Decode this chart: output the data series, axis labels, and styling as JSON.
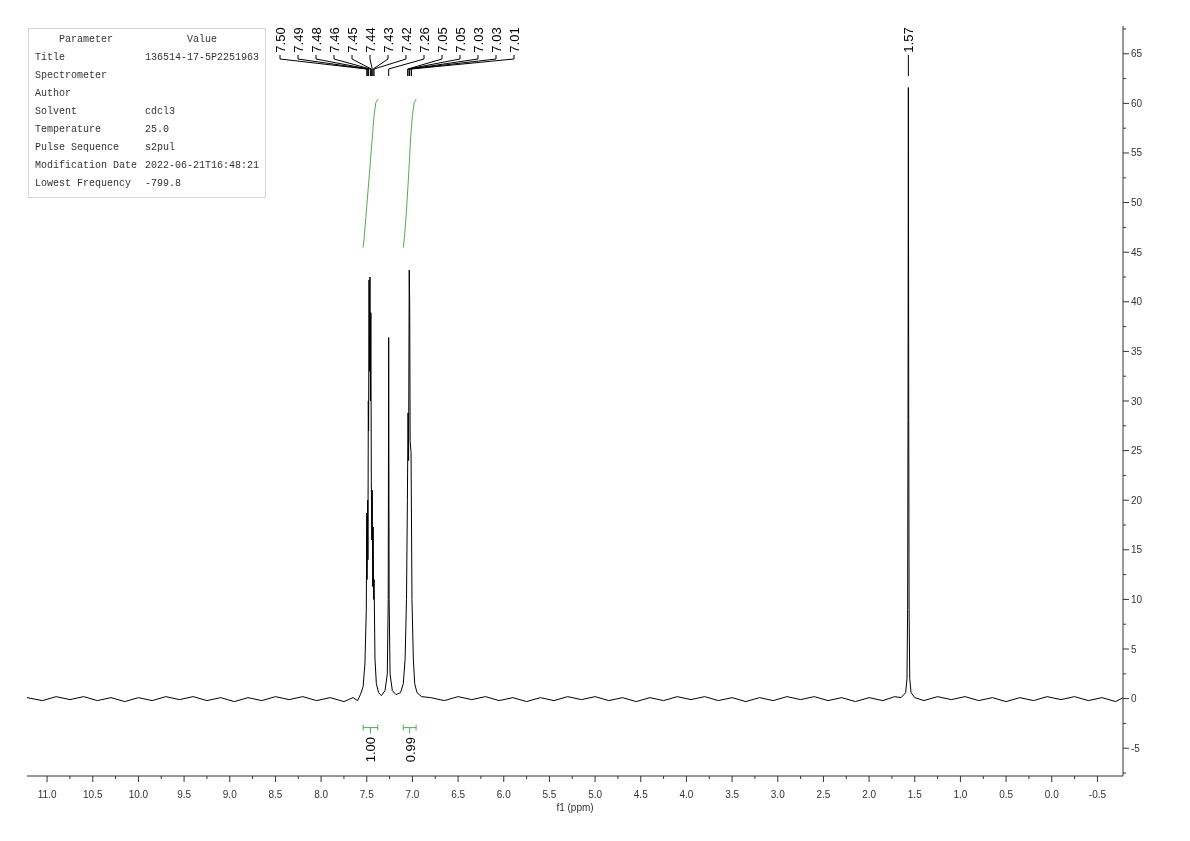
{
  "chart_data": [
    {
      "type": "line",
      "xlabel": "f1 (ppm)",
      "xlim": [
        11.22,
        -0.78
      ],
      "xticks": [
        {
          "value": 11,
          "label": "11.0"
        },
        {
          "value": 10.75,
          "label": null
        },
        10.5,
        {
          "value": 10.25,
          "label": null
        },
        {
          "value": 10,
          "label": "10.0"
        },
        {
          "value": 9.75,
          "label": null
        },
        9.5,
        {
          "value": 9.25,
          "label": null
        },
        {
          "value": 9,
          "label": "9.0"
        },
        {
          "value": 8.75,
          "label": null
        },
        8.5,
        {
          "value": 8.25,
          "label": null
        },
        {
          "value": 8,
          "label": "8.0"
        },
        {
          "value": 7.75,
          "label": null
        },
        7.5,
        {
          "value": 7.25,
          "label": null
        },
        {
          "value": 7,
          "label": "7.0"
        },
        {
          "value": 6.75,
          "label": null
        },
        6.5,
        {
          "value": 6.25,
          "label": null
        },
        {
          "value": 6,
          "label": "6.0"
        },
        {
          "value": 5.75,
          "label": null
        },
        5.5,
        {
          "value": 5.25,
          "label": null
        },
        {
          "value": 5,
          "label": "5.0"
        },
        {
          "value": 4.75,
          "label": null
        },
        4.5,
        {
          "value": 4.25,
          "label": null
        },
        {
          "value": 4,
          "label": "4.0"
        },
        {
          "value": 3.75,
          "label": null
        },
        3.5,
        {
          "value": 3.25,
          "label": null
        },
        {
          "value": 3,
          "label": "3.0"
        },
        {
          "value": 2.75,
          "label": null
        },
        2.5,
        {
          "value": 2.25,
          "label": null
        },
        {
          "value": 2,
          "label": "2.0"
        },
        {
          "value": 1.75,
          "label": null
        },
        1.5,
        {
          "value": 1.25,
          "label": null
        },
        {
          "value": 1,
          "label": "1.0"
        },
        {
          "value": 0.75,
          "label": null
        },
        0.5,
        {
          "value": 0.25,
          "label": null
        },
        {
          "value": 0,
          "label": "0.0"
        },
        {
          "value": -0.25,
          "label": null
        },
        -0.5
      ],
      "ylim": [
        -7.8,
        67.8
      ],
      "yticks": [
        {
          "value": -7.5,
          "label": null
        },
        -5,
        {
          "value": -2.5,
          "label": null
        },
        0,
        {
          "value": 2.5,
          "label": null
        },
        5,
        {
          "value": 7.5,
          "label": null
        },
        10,
        {
          "value": 12.5,
          "label": null
        },
        15,
        {
          "value": 17.5,
          "label": null
        },
        20,
        {
          "value": 22.5,
          "label": null
        },
        25,
        {
          "value": 27.5,
          "label": null
        },
        30,
        {
          "value": 32.5,
          "label": null
        },
        35,
        {
          "value": 37.5,
          "label": null
        },
        40,
        {
          "value": 42.5,
          "label": null
        },
        45,
        {
          "value": 47.5,
          "label": null
        },
        50,
        {
          "value": 52.5,
          "label": null
        },
        55,
        {
          "value": 57.5,
          "label": null
        },
        60,
        {
          "value": 62.5,
          "label": null
        },
        65,
        {
          "value": 67.5,
          "label": null
        }
      ],
      "marker": "none",
      "series": [
        {
          "type": "line",
          "color": "#000000",
          "x": [
            11.22,
            11.05,
            10.9,
            10.75,
            10.6,
            10.45,
            10.3,
            10.15,
            10.0,
            9.85,
            9.7,
            9.55,
            9.4,
            9.25,
            9.1,
            8.95,
            8.8,
            8.65,
            8.5,
            8.35,
            8.2,
            8.05,
            7.9,
            7.75,
            7.65,
            7.6,
            7.57,
            7.54,
            7.52,
            7.505,
            7.5,
            7.497,
            7.493,
            7.49,
            7.487,
            7.483,
            7.48,
            7.475,
            7.47,
            7.465,
            7.46,
            7.455,
            7.45,
            7.445,
            7.44,
            7.435,
            7.43,
            7.425,
            7.42,
            7.41,
            7.395,
            7.37,
            7.34,
            7.3,
            7.275,
            7.265,
            7.26,
            7.255,
            7.245,
            7.22,
            7.18,
            7.13,
            7.1,
            7.08,
            7.065,
            7.055,
            7.048,
            7.042,
            7.035,
            7.03,
            7.025,
            7.015,
            7.005,
            6.99,
            6.975,
            6.95,
            6.9,
            6.8,
            6.65,
            6.5,
            6.35,
            6.2,
            6.05,
            5.9,
            5.75,
            5.6,
            5.45,
            5.3,
            5.15,
            5.0,
            4.85,
            4.7,
            4.55,
            4.4,
            4.25,
            4.1,
            3.95,
            3.8,
            3.65,
            3.5,
            3.35,
            3.2,
            3.05,
            2.9,
            2.75,
            2.6,
            2.45,
            2.3,
            2.15,
            2.0,
            1.85,
            1.72,
            1.65,
            1.6,
            1.585,
            1.578,
            1.574,
            1.57,
            1.566,
            1.562,
            1.555,
            1.54,
            1.5,
            1.4,
            1.25,
            1.1,
            0.95,
            0.8,
            0.65,
            0.5,
            0.35,
            0.2,
            0.05,
            -0.1,
            -0.25,
            -0.4,
            -0.55,
            -0.7,
            -0.78
          ],
          "values": [
            0.1,
            -0.2,
            0.2,
            -0.1,
            0.2,
            -0.2,
            0.1,
            -0.3,
            0.1,
            -0.2,
            0.2,
            -0.1,
            0.2,
            -0.2,
            0.1,
            -0.3,
            0.1,
            -0.2,
            0.2,
            -0.1,
            0.2,
            -0.2,
            0.1,
            -0.3,
            0.1,
            -0.2,
            0.4,
            1.2,
            3.5,
            9,
            18.7,
            12,
            16,
            20,
            14,
            30,
            27,
            42.2,
            33,
            42.5,
            30,
            38.9,
            22,
            16,
            21,
            11.3,
            17.3,
            10,
            12,
            4,
            1.5,
            0.6,
            0.3,
            0.8,
            2.5,
            10,
            36.4,
            10,
            2.5,
            0.8,
            0.4,
            0.6,
            1.5,
            4,
            10,
            20,
            28.8,
            24,
            43.2,
            40,
            26,
            24.8,
            10,
            4,
            1.5,
            0.6,
            0.2,
            0.1,
            -0.2,
            0.2,
            -0.1,
            0.2,
            -0.2,
            0.1,
            -0.3,
            0.1,
            -0.2,
            0.2,
            -0.1,
            0.2,
            -0.2,
            0.1,
            -0.3,
            0.1,
            -0.2,
            0.2,
            -0.1,
            0.2,
            -0.2,
            0.1,
            -0.3,
            0.1,
            -0.2,
            0.2,
            -0.1,
            0.2,
            -0.2,
            0.1,
            -0.3,
            0.1,
            -0.2,
            0.2,
            0.1,
            0.6,
            2,
            9,
            28,
            61.6,
            28,
            9,
            2,
            0.6,
            0.1,
            -0.2,
            0.2,
            -0.1,
            0.2,
            -0.2,
            0.1,
            -0.3,
            0.1,
            -0.2,
            0.2,
            -0.1,
            0.2,
            -0.2,
            0.1,
            -0.3,
            0.1
          ]
        },
        {
          "type": "line",
          "color": "#4caf50",
          "x": [
            7.54,
            7.53,
            7.51,
            7.47,
            7.44,
            7.42,
            7.4,
            7.38
          ],
          "values": [
            45.5,
            46.3,
            48.5,
            53,
            56.5,
            58.8,
            60.1,
            60.4
          ]
        },
        {
          "type": "line",
          "color": "#4caf50",
          "x": [
            7.1,
            7.09,
            7.07,
            7.04,
            7.02,
            7.0,
            6.98,
            6.96
          ],
          "values": [
            45.5,
            46.3,
            48.5,
            53,
            56.5,
            58.8,
            60.1,
            60.4
          ]
        }
      ],
      "annotations": [
        {
          "text": "7.50",
          "x": 7.5
        },
        {
          "text": "7.49",
          "x": 7.49
        },
        {
          "text": "7.48",
          "x": 7.48
        },
        {
          "text": "7.46",
          "x": 7.46
        },
        {
          "text": "7.45",
          "x": 7.45
        },
        {
          "text": "7.44",
          "x": 7.44
        },
        {
          "text": "7.43",
          "x": 7.43
        },
        {
          "text": "7.42",
          "x": 7.42
        },
        {
          "text": "7.26",
          "x": 7.26
        },
        {
          "text": "7.05",
          "x": 7.05
        },
        {
          "text": "7.05",
          "x": 7.05
        },
        {
          "text": "7.03",
          "x": 7.03
        },
        {
          "text": "7.03",
          "x": 7.03
        },
        {
          "text": "7.01",
          "x": 7.01
        },
        {
          "text": "1.57",
          "x": 1.57
        },
        "1.00",
        "0.99"
      ]
    },
    {
      "type": "other",
      "categories": [
        "Parameter",
        "Value"
      ],
      "y_categories": [
        "Title",
        "Spectrometer",
        "Author",
        "Solvent",
        "Temperature",
        "Pulse Sequence",
        "Modification Date",
        "Lowest Frequency"
      ],
      "cell_labels": [
        [
          "136514-17-5P2251963"
        ],
        [
          null
        ],
        [
          null
        ],
        [
          "cdcl3"
        ],
        [
          "25.0"
        ],
        [
          "s2pul"
        ],
        [
          "2022-06-21T16:48:21"
        ],
        [
          "-799.8"
        ]
      ]
    }
  ]
}
